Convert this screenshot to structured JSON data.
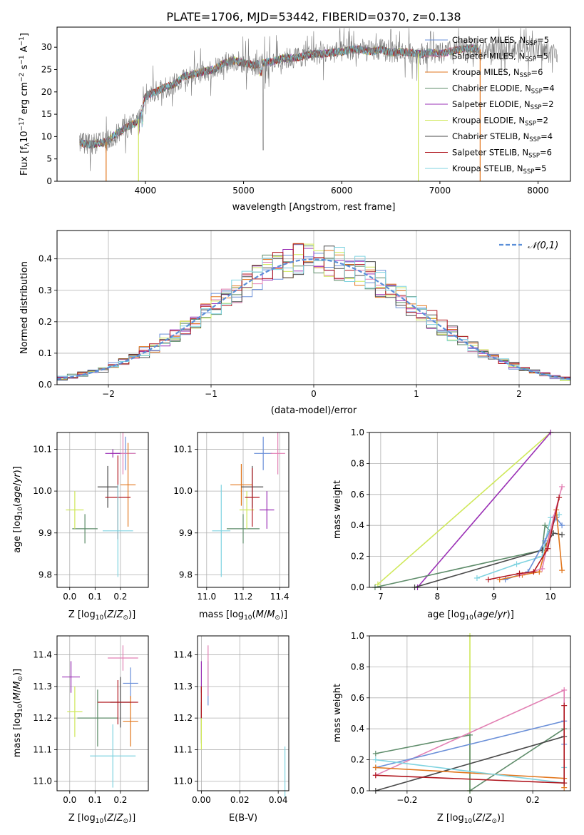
{
  "figure_title": "PLATE=1706, MJD=53442, FIBERID=0370, z=0.138",
  "colors": {
    "Chabrier MILES": "#6a8fd8",
    "Salpeter MILES": "#e27fb3",
    "Kroupa MILES": "#e2761c",
    "Chabrier ELODIE": "#5e8c6a",
    "Salpeter ELODIE": "#9a2fb5",
    "Kroupa ELODIE": "#cfe85a",
    "Chabrier STELIB": "#4a4a4a",
    "Salpeter STELIB": "#b0171f",
    "Kroupa STELIB": "#7fd3e0",
    "normal_curve": "#5b8fd8",
    "grid": "#b0b0b0"
  },
  "chart_data": [
    {
      "id": "spectrum",
      "type": "line",
      "xlabel": "wavelength [Angstrom, rest frame]",
      "ylabel": "Flux [f_λ 10^-17 erg cm^-2 s^-1 A^-1]",
      "xlim": [
        3100,
        8330
      ],
      "ylim": [
        0,
        34.5
      ],
      "xticks": [
        4000,
        5000,
        6000,
        7000,
        8000
      ],
      "yticks": [
        0,
        5,
        10,
        15,
        20,
        25,
        30
      ],
      "grid": false,
      "legend": "right",
      "series": [
        {
          "name": "Chabrier MILES",
          "nssp": "5"
        },
        {
          "name": "Salpeter MILES",
          "nssp": "5"
        },
        {
          "name": "Kroupa MILES",
          "nssp": "6"
        },
        {
          "name": "Chabrier ELODIE",
          "nssp": "4"
        },
        {
          "name": "Salpeter ELODIE",
          "nssp": "2"
        },
        {
          "name": "Kroupa ELODIE",
          "nssp": "2"
        },
        {
          "name": "Chabrier STELIB",
          "nssp": "4"
        },
        {
          "name": "Salpeter STELIB",
          "nssp": "6"
        },
        {
          "name": "Kroupa STELIB",
          "nssp": "5"
        }
      ],
      "continuum": {
        "x": [
          3330,
          3450,
          3600,
          3700,
          3800,
          3900,
          3950,
          4000,
          4100,
          4200,
          4300,
          4400,
          4500,
          4600,
          4700,
          4800,
          4900,
          5000,
          5100,
          5200,
          5300,
          5400,
          5500,
          5600,
          5700,
          5800,
          5900,
          6000,
          6100,
          6200,
          6300,
          6400,
          6500,
          6600,
          6700,
          6800,
          6900,
          7000,
          7100,
          7200,
          7300,
          7400
        ],
        "y": [
          8.5,
          8.2,
          8.8,
          10.5,
          12.0,
          13.0,
          14.5,
          19.0,
          20.0,
          21.0,
          21.8,
          23.5,
          24.0,
          24.6,
          25.0,
          26.5,
          27.0,
          26.5,
          26.0,
          26.5,
          26.8,
          27.5,
          27.5,
          28.0,
          28.5,
          28.5,
          28.8,
          29.0,
          29.5,
          29.5,
          29.0,
          29.5,
          28.8,
          29.0,
          28.8,
          28.5,
          28.8,
          28.5,
          29.0,
          29.5,
          29.8,
          29.5
        ]
      },
      "tail": {
        "x": [
          7400,
          7500,
          7600,
          7700,
          7800,
          7900,
          8000,
          8100,
          8200
        ],
        "y": [
          29.0,
          29.5,
          28.8,
          30.0,
          29.0,
          30.5,
          29.5,
          29.0,
          28.5
        ]
      },
      "dropouts": [
        {
          "x": 3600,
          "series": "Kroupa MILES",
          "color_key": "Kroupa MILES"
        },
        {
          "x": 3930,
          "series": "Kroupa ELODIE",
          "color_key": "Kroupa ELODIE"
        },
        {
          "x": 6780,
          "series": "Kroupa ELODIE",
          "color_key": "Kroupa ELODIE"
        },
        {
          "x": 7410,
          "series": "Kroupa MILES",
          "color_key": "Kroupa MILES"
        }
      ]
    },
    {
      "id": "residuals",
      "type": "line",
      "xlabel": "(data-model)/error",
      "ylabel": "Normed distribution",
      "xlim": [
        -2.5,
        2.5
      ],
      "ylim": [
        0,
        0.49
      ],
      "xticks": [
        -2,
        -1,
        0,
        1,
        2
      ],
      "yticks": [
        0.0,
        0.1,
        0.2,
        0.3,
        0.4
      ],
      "grid": true,
      "legend": "top-right",
      "normal_label": "𝒩(0,1)",
      "bins": {
        "start": -2.5,
        "width": 0.1,
        "count": 50
      }
    },
    {
      "id": "age_vs_Z",
      "type": "scatter",
      "xlabel": "Z [log₁₀(Z/Z⊙)]",
      "ylabel": "age [log₁₀(age/yr)]",
      "xlim": [
        -0.05,
        0.31
      ],
      "ylim": [
        9.77,
        10.14
      ],
      "xticks": [
        0.0,
        0.1,
        0.2
      ],
      "yticks": [
        9.8,
        9.9,
        10.0,
        10.1
      ],
      "grid": true,
      "points": [
        {
          "name": "Chabrier MILES",
          "x": 0.22,
          "y": 10.09,
          "xerr": 0.04,
          "yerr": 0.04
        },
        {
          "name": "Salpeter MILES",
          "x": 0.21,
          "y": 10.09,
          "xerr": 0.05,
          "yerr": 0.05
        },
        {
          "name": "Kroupa MILES",
          "x": 0.23,
          "y": 10.015,
          "xerr": 0.03,
          "yerr": 0.1
        },
        {
          "name": "Chabrier ELODIE",
          "x": 0.06,
          "y": 9.91,
          "xerr": 0.05,
          "yerr": 0.035
        },
        {
          "name": "Salpeter ELODIE",
          "x": 0.17,
          "y": 10.09,
          "xerr": 0.03,
          "yerr": 0.01
        },
        {
          "name": "Kroupa ELODIE",
          "x": 0.02,
          "y": 9.955,
          "xerr": 0.035,
          "yerr": 0.045
        },
        {
          "name": "Chabrier STELIB",
          "x": 0.15,
          "y": 10.01,
          "xerr": 0.04,
          "yerr": 0.05
        },
        {
          "name": "Salpeter STELIB",
          "x": 0.19,
          "y": 9.985,
          "xerr": 0.05,
          "yerr": 0.1
        },
        {
          "name": "Kroupa STELIB",
          "x": 0.19,
          "y": 9.905,
          "xerr": 0.06,
          "yerr": 0.11
        }
      ]
    },
    {
      "id": "age_vs_mass",
      "type": "scatter",
      "xlabel": "mass [log₁₀(M/M⊙)]",
      "ylabel": "",
      "xlim": [
        10.95,
        11.45
      ],
      "ylim": [
        9.77,
        10.14
      ],
      "xticks": [
        11.0,
        11.2,
        11.4
      ],
      "yticks": [
        9.8,
        9.9,
        10.0,
        10.1
      ],
      "grid": true,
      "points": [
        {
          "name": "Chabrier MILES",
          "x": 11.31,
          "y": 10.09,
          "xerr": 0.05,
          "yerr": 0.04
        },
        {
          "name": "Salpeter MILES",
          "x": 11.39,
          "y": 10.09,
          "xerr": 0.04,
          "yerr": 0.05
        },
        {
          "name": "Kroupa MILES",
          "x": 11.19,
          "y": 10.015,
          "xerr": 0.06,
          "yerr": 0.05
        },
        {
          "name": "Chabrier ELODIE",
          "x": 11.2,
          "y": 9.91,
          "xerr": 0.09,
          "yerr": 0.035
        },
        {
          "name": "Salpeter ELODIE",
          "x": 11.33,
          "y": 9.955,
          "xerr": 0.04,
          "yerr": 0.045
        },
        {
          "name": "Kroupa ELODIE",
          "x": 11.22,
          "y": 9.955,
          "xerr": 0.04,
          "yerr": 0.045
        },
        {
          "name": "Chabrier STELIB",
          "x": 11.25,
          "y": 10.01,
          "xerr": 0.06,
          "yerr": 0.05
        },
        {
          "name": "Salpeter STELIB",
          "x": 11.25,
          "y": 9.985,
          "xerr": 0.04,
          "yerr": 0.07
        },
        {
          "name": "Kroupa STELIB",
          "x": 11.08,
          "y": 9.905,
          "xerr": 0.05,
          "yerr": 0.11
        }
      ]
    },
    {
      "id": "mass_weight_vs_age",
      "type": "line",
      "xlabel": "age [log₁₀(age/yr)]",
      "ylabel": "mass weight",
      "xlim": [
        6.8,
        10.35
      ],
      "ylim": [
        0,
        1.0
      ],
      "xticks": [
        7,
        8,
        9,
        10
      ],
      "yticks": [
        0.0,
        0.2,
        0.4,
        0.6,
        0.8,
        1.0
      ],
      "grid": true,
      "series": [
        {
          "name": "Kroupa ELODIE",
          "x": [
            6.95,
            10.0
          ],
          "y": [
            0.02,
            1.0
          ]
        },
        {
          "name": "Salpeter ELODIE",
          "x": [
            7.65,
            10.0
          ],
          "y": [
            0.0,
            1.0
          ]
        },
        {
          "name": "Chabrier ELODIE",
          "x": [
            6.9,
            9.85,
            9.9,
            10.0
          ],
          "y": [
            0.0,
            0.24,
            0.4,
            0.36
          ]
        },
        {
          "name": "Chabrier STELIB",
          "x": [
            7.6,
            9.85,
            10.05,
            10.2
          ],
          "y": [
            0.0,
            0.24,
            0.35,
            0.34
          ]
        },
        {
          "name": "Kroupa STELIB",
          "x": [
            8.7,
            9.4,
            9.85,
            10.0,
            10.15
          ],
          "y": [
            0.06,
            0.15,
            0.2,
            0.45,
            0.47
          ]
        },
        {
          "name": "Chabrier MILES",
          "x": [
            9.2,
            9.6,
            9.9,
            10.1,
            10.2
          ],
          "y": [
            0.05,
            0.1,
            0.3,
            0.45,
            0.4
          ]
        },
        {
          "name": "Kroupa MILES",
          "x": [
            9.1,
            9.5,
            9.8,
            10.1,
            10.2
          ],
          "y": [
            0.05,
            0.08,
            0.1,
            0.5,
            0.11
          ]
        },
        {
          "name": "Salpeter MILES",
          "x": [
            9.45,
            9.85,
            10.05,
            10.2
          ],
          "y": [
            0.08,
            0.12,
            0.45,
            0.65
          ]
        },
        {
          "name": "Salpeter STELIB",
          "x": [
            8.9,
            9.45,
            9.7,
            9.95,
            10.15
          ],
          "y": [
            0.05,
            0.09,
            0.1,
            0.25,
            0.58
          ]
        }
      ]
    },
    {
      "id": "mass_vs_Z",
      "type": "scatter",
      "xlabel": "Z [log₁₀(Z/Z⊙)]",
      "ylabel": "mass [log₁₀(M/M⊙)]",
      "xlim": [
        -0.05,
        0.31
      ],
      "ylim": [
        10.97,
        11.46
      ],
      "xticks": [
        0.0,
        0.1,
        0.2
      ],
      "yticks": [
        11.0,
        11.1,
        11.2,
        11.3,
        11.4
      ],
      "grid": true,
      "points": [
        {
          "name": "Chabrier MILES",
          "x": 0.24,
          "y": 11.31,
          "xerr": 0.03,
          "yerr": 0.05
        },
        {
          "name": "Salpeter MILES",
          "x": 0.21,
          "y": 11.39,
          "xerr": 0.06,
          "yerr": 0.04
        },
        {
          "name": "Kroupa MILES",
          "x": 0.24,
          "y": 11.19,
          "xerr": 0.03,
          "yerr": 0.08
        },
        {
          "name": "Chabrier ELODIE",
          "x": 0.11,
          "y": 11.2,
          "xerr": 0.08,
          "yerr": 0.09
        },
        {
          "name": "Salpeter ELODIE",
          "x": 0.005,
          "y": 11.33,
          "xerr": 0.035,
          "yerr": 0.05
        },
        {
          "name": "Kroupa ELODIE",
          "x": 0.02,
          "y": 11.22,
          "xerr": 0.03,
          "yerr": 0.08
        },
        {
          "name": "Chabrier STELIB",
          "x": 0.2,
          "y": 11.25,
          "xerr": 0.04,
          "yerr": 0.08
        },
        {
          "name": "Salpeter STELIB",
          "x": 0.19,
          "y": 11.25,
          "xerr": 0.08,
          "yerr": 0.07
        },
        {
          "name": "Kroupa STELIB",
          "x": 0.17,
          "y": 11.08,
          "xerr": 0.09,
          "yerr": 0.1
        }
      ]
    },
    {
      "id": "mass_vs_ebv",
      "type": "scatter",
      "xlabel": "E(B-V)",
      "ylabel": "",
      "xlim": [
        -0.002,
        0.0455
      ],
      "ylim": [
        10.97,
        11.46
      ],
      "xticks": [
        0.0,
        0.02,
        0.04
      ],
      "yticks": [
        11.0,
        11.1,
        11.2,
        11.3,
        11.4
      ],
      "grid": true,
      "points": [
        {
          "name": "Chabrier MILES",
          "x": 0.0035,
          "y": 11.31,
          "xerr": 0,
          "yerr": 0.07
        },
        {
          "name": "Salpeter MILES",
          "x": 0.0035,
          "y": 11.35,
          "xerr": 0,
          "yerr": 0.08
        },
        {
          "name": "Kroupa MILES",
          "x": 0.0,
          "y": 11.19,
          "xerr": 0,
          "yerr": 0.06
        },
        {
          "name": "Chabrier ELODIE",
          "x": 0.0,
          "y": 11.18,
          "xerr": 0,
          "yerr": 0.06
        },
        {
          "name": "Salpeter ELODIE",
          "x": 0.0,
          "y": 11.33,
          "xerr": 0,
          "yerr": 0.05
        },
        {
          "name": "Kroupa ELODIE",
          "x": 0.0,
          "y": 11.15,
          "xerr": 0,
          "yerr": 0.05
        },
        {
          "name": "Chabrier STELIB",
          "x": 0.0,
          "y": 11.25,
          "xerr": 0,
          "yerr": 0.05
        },
        {
          "name": "Salpeter STELIB",
          "x": 0.0,
          "y": 11.25,
          "xerr": 0,
          "yerr": 0.05
        },
        {
          "name": "Kroupa STELIB",
          "x": 0.0435,
          "y": 11.03,
          "xerr": 0,
          "yerr": 0.08
        }
      ]
    },
    {
      "id": "mass_weight_vs_Z",
      "type": "line",
      "xlabel": "Z [log₁₀(Z/Z⊙)]",
      "ylabel": "mass weight",
      "xlim": [
        -0.32,
        0.32
      ],
      "ylim": [
        0,
        1.0
      ],
      "xticks": [
        -0.2,
        0.0,
        0.2
      ],
      "yticks": [
        0.0,
        0.2,
        0.4,
        0.6,
        0.8,
        1.0
      ],
      "grid": true,
      "series": [
        {
          "name": "Kroupa ELODIE",
          "x": [
            0.0,
            0.0
          ],
          "y": [
            0.0,
            1.0
          ]
        },
        {
          "name": "Chabrier ELODIE",
          "x": [
            -0.3,
            0.0,
            0.0,
            0.3
          ],
          "y": [
            0.24,
            0.36,
            0.0,
            0.4
          ]
        },
        {
          "name": "Salpeter MILES",
          "x": [
            -0.3,
            0.3,
            0.3
          ],
          "y": [
            0.1,
            0.65,
            0.45
          ]
        },
        {
          "name": "Chabrier MILES",
          "x": [
            -0.3,
            0.3,
            0.3
          ],
          "y": [
            0.15,
            0.45,
            0.3
          ]
        },
        {
          "name": "Chabrier STELIB",
          "x": [
            -0.3,
            0.3
          ],
          "y": [
            0.0,
            0.35
          ]
        },
        {
          "name": "Kroupa MILES",
          "x": [
            -0.3,
            0.3,
            0.3
          ],
          "y": [
            0.15,
            0.08,
            0.02
          ]
        },
        {
          "name": "Kroupa STELIB",
          "x": [
            -0.3,
            0.3,
            0.3
          ],
          "y": [
            0.2,
            0.05,
            0.15
          ]
        },
        {
          "name": "Salpeter STELIB",
          "x": [
            -0.3,
            0.3,
            0.3
          ],
          "y": [
            0.1,
            0.05,
            0.55
          ]
        }
      ]
    }
  ]
}
